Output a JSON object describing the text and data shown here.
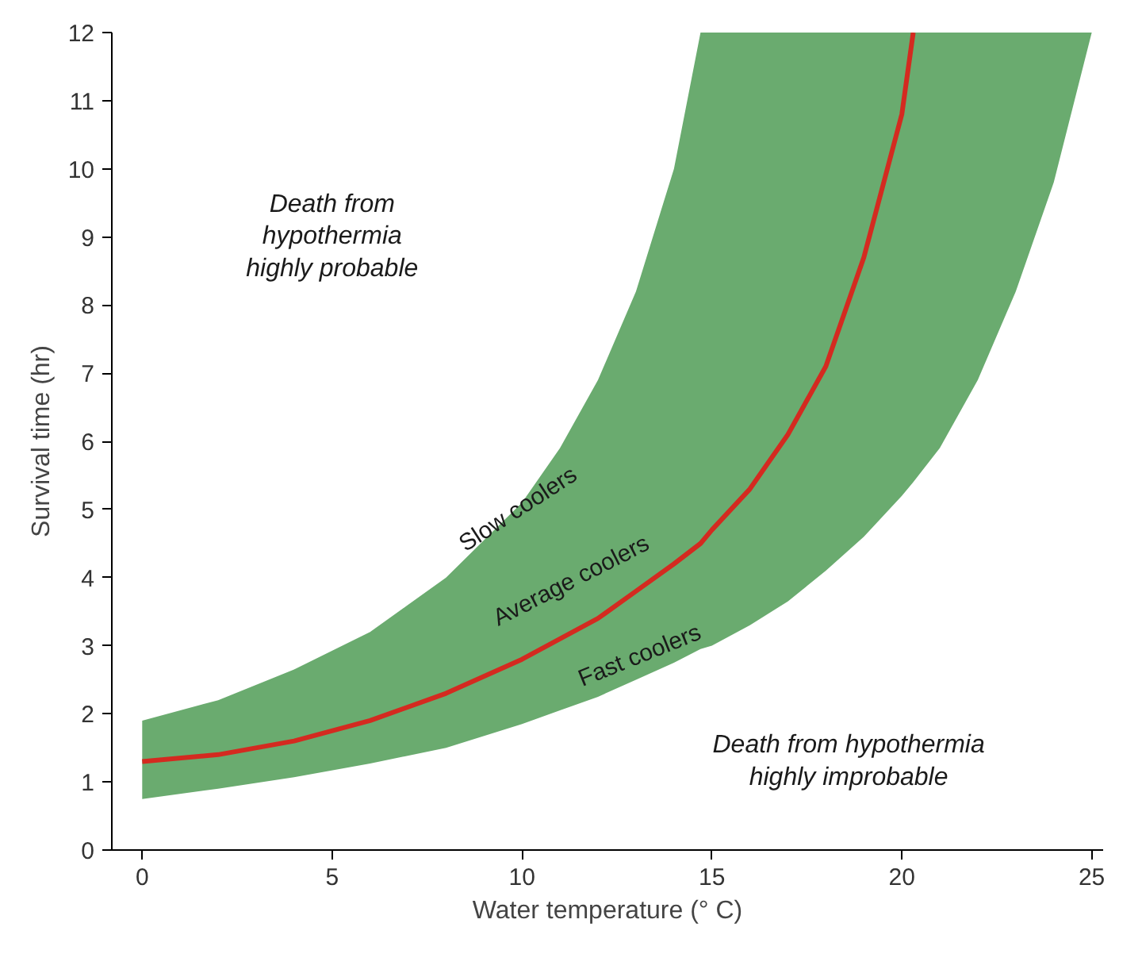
{
  "chart_data": {
    "type": "line",
    "xlabel": "Water temperature (° C)",
    "ylabel": "Survival time (hr)",
    "xlim": [
      -0.8,
      25.3
    ],
    "ylim": [
      0,
      12
    ],
    "xticks": [
      0,
      5,
      10,
      15,
      20,
      25
    ],
    "yticks": [
      0,
      1,
      2,
      3,
      4,
      5,
      6,
      7,
      8,
      9,
      10,
      11,
      12
    ],
    "grid": false,
    "series": [
      {
        "name": "Average coolers",
        "color": "#d42a20",
        "x": [
          0,
          2,
          4,
          6,
          8,
          10,
          11,
          12,
          13,
          14,
          14.7,
          15,
          16,
          17,
          18,
          19,
          20,
          20.3,
          21,
          22,
          23,
          24,
          25
        ],
        "values": [
          1.3,
          1.4,
          1.6,
          1.9,
          2.3,
          2.8,
          3.1,
          3.4,
          3.8,
          4.2,
          4.5,
          4.7,
          5.3,
          6.1,
          7.1,
          8.7,
          10.8,
          12,
          null,
          null,
          null,
          null,
          null
        ],
        "lower": [
          0.75,
          0.9,
          1.07,
          1.27,
          1.5,
          1.85,
          2.05,
          2.25,
          2.5,
          2.75,
          2.95,
          3.0,
          3.3,
          3.65,
          4.1,
          4.6,
          5.2,
          5.4,
          5.9,
          6.9,
          8.2,
          9.8,
          12
        ],
        "upper": [
          1.9,
          2.2,
          2.65,
          3.2,
          4.0,
          5.1,
          5.9,
          6.9,
          8.2,
          10,
          12,
          12,
          12,
          12,
          12,
          12,
          12,
          12,
          12,
          12,
          12,
          12,
          12
        ]
      }
    ],
    "annotations": [
      "Death from\nhypothermia\nhighly probable",
      "Death from hypothermia\nhighly improbable",
      "Slow coolers",
      "Fast coolers"
    ]
  }
}
